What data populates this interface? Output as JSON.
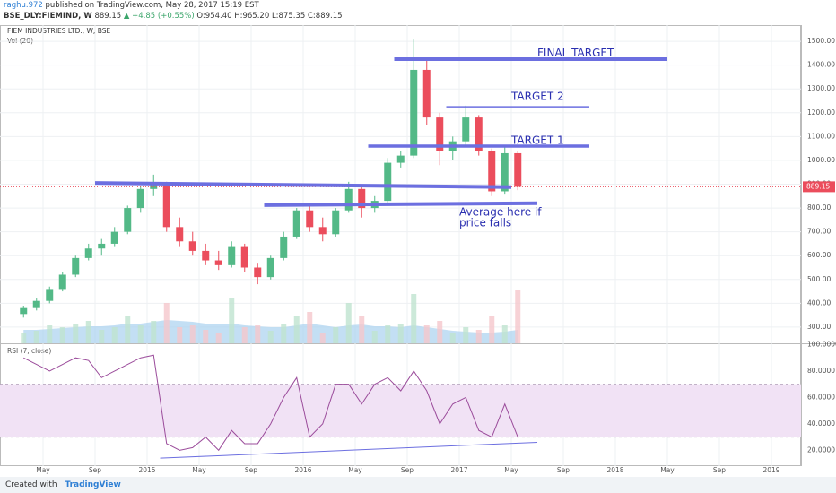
{
  "header": {
    "author": "raghu.972",
    "published": "published on TradingView.com, May 28, 2017 15:19 EST",
    "symbol": "BSE_DLY:FIEMIND, W",
    "last": "889.15",
    "change": "▲ +4.85 (+0.55%)",
    "open": "O:954.40",
    "high": "H:965.20",
    "low": "L:875.35",
    "close": "C:889.15"
  },
  "footer": {
    "created": "Created with",
    "brand": "TradingView"
  },
  "chart_data": {
    "type": "candlestick",
    "title": "FIEM INDUSTRIES LTD., W, BSE",
    "x": [
      "2014-03",
      "2014-04",
      "2014-05",
      "2014-06",
      "2014-07",
      "2014-08",
      "2014-09",
      "2014-10",
      "2014-11",
      "2014-12",
      "2015-01",
      "2015-02",
      "2015-03",
      "2015-04",
      "2015-05",
      "2015-06",
      "2015-07",
      "2015-08",
      "2015-09",
      "2015-10",
      "2015-11",
      "2015-12",
      "2016-01",
      "2016-02",
      "2016-03",
      "2016-04",
      "2016-05",
      "2016-06",
      "2016-07",
      "2016-08",
      "2016-09",
      "2016-10",
      "2016-11",
      "2016-12",
      "2017-01",
      "2017-02",
      "2017-03",
      "2017-04",
      "2017-05"
    ],
    "open": [
      355,
      380,
      410,
      460,
      520,
      590,
      630,
      650,
      700,
      800,
      880,
      900,
      720,
      660,
      620,
      580,
      560,
      640,
      550,
      510,
      590,
      680,
      790,
      720,
      690,
      790,
      880,
      800,
      830,
      990,
      1020,
      1380,
      1180,
      1040,
      1080,
      1180,
      1040,
      870,
      1030
    ],
    "high": [
      390,
      420,
      470,
      530,
      600,
      650,
      670,
      720,
      810,
      890,
      940,
      910,
      760,
      700,
      650,
      620,
      660,
      650,
      570,
      600,
      700,
      800,
      810,
      760,
      800,
      910,
      890,
      850,
      1010,
      1040,
      1510,
      1420,
      1200,
      1100,
      1230,
      1190,
      1050,
      1060,
      1040
    ],
    "low": [
      340,
      370,
      400,
      450,
      510,
      580,
      600,
      640,
      690,
      780,
      850,
      700,
      640,
      600,
      560,
      540,
      550,
      530,
      480,
      500,
      580,
      670,
      700,
      660,
      680,
      780,
      760,
      780,
      820,
      970,
      1010,
      1150,
      980,
      1000,
      1060,
      1020,
      850,
      860,
      875
    ],
    "close": [
      380,
      410,
      460,
      520,
      590,
      630,
      650,
      700,
      800,
      880,
      900,
      720,
      660,
      620,
      580,
      560,
      640,
      550,
      510,
      590,
      680,
      790,
      720,
      690,
      790,
      880,
      800,
      830,
      990,
      1020,
      1380,
      1180,
      1040,
      1080,
      1180,
      1040,
      870,
      1030,
      889.15
    ],
    "last_price_label": "889.15",
    "up_color": "#53b987",
    "down_color": "#eb4d5c",
    "xlim": [
      "2014-01",
      "2019-03"
    ],
    "xticks": [
      {
        "value": "2014-05",
        "label": "May"
      },
      {
        "value": "2014-09",
        "label": "Sep"
      },
      {
        "value": "2015-01",
        "label": "2015"
      },
      {
        "value": "2015-05",
        "label": "May"
      },
      {
        "value": "2015-09",
        "label": "Sep"
      },
      {
        "value": "2016-01",
        "label": "2016"
      },
      {
        "value": "2016-05",
        "label": "May"
      },
      {
        "value": "2016-09",
        "label": "Sep"
      },
      {
        "value": "2017-01",
        "label": "2017"
      },
      {
        "value": "2017-05",
        "label": "May"
      },
      {
        "value": "2017-09",
        "label": "Sep"
      },
      {
        "value": "2018-01",
        "label": "2018"
      },
      {
        "value": "2018-05",
        "label": "May"
      },
      {
        "value": "2018-09",
        "label": "Sep"
      },
      {
        "value": "2019-01",
        "label": "2019"
      }
    ],
    "ylim": [
      232,
      1568
    ],
    "yticks": [
      {
        "value": 300,
        "label": "300.00"
      },
      {
        "value": 400,
        "label": "400.00"
      },
      {
        "value": 500,
        "label": "500.00"
      },
      {
        "value": 600,
        "label": "600.00"
      },
      {
        "value": 700,
        "label": "700.00"
      },
      {
        "value": 800,
        "label": "800.00"
      },
      {
        "value": 900,
        "label": "900.00"
      },
      {
        "value": 1000,
        "label": "1000.00"
      },
      {
        "value": 1100,
        "label": "1100.00"
      },
      {
        "value": 1200,
        "label": "1200.00"
      },
      {
        "value": 1300,
        "label": "1300.00"
      },
      {
        "value": 1400,
        "label": "1400.00"
      },
      {
        "value": 1500,
        "label": "1500.00"
      }
    ],
    "grid": true,
    "volume": {
      "label": "Vol (20)",
      "values": [
        12,
        14,
        20,
        18,
        22,
        25,
        15,
        18,
        30,
        20,
        25,
        45,
        18,
        20,
        15,
        12,
        50,
        18,
        20,
        14,
        22,
        30,
        35,
        12,
        18,
        45,
        30,
        14,
        20,
        22,
        55,
        20,
        25,
        12,
        18,
        15,
        30,
        20,
        60
      ],
      "ma": [
        15,
        15,
        16,
        17,
        18,
        19,
        19,
        20,
        22,
        22,
        24,
        26,
        25,
        24,
        22,
        21,
        22,
        20,
        19,
        18,
        18,
        20,
        22,
        20,
        18,
        20,
        21,
        19,
        19,
        18,
        20,
        18,
        16,
        14,
        13,
        12,
        12,
        13,
        15
      ],
      "vlim": [
        0,
        100
      ],
      "up_color": "#bfe3d0",
      "down_color": "#f5c7cc",
      "ma_color": "#a9d2f0"
    },
    "rsi": {
      "label": "RSI (7, close)",
      "values": [
        90,
        85,
        80,
        85,
        90,
        88,
        75,
        80,
        85,
        90,
        92,
        25,
        20,
        22,
        30,
        20,
        35,
        25,
        25,
        40,
        60,
        75,
        30,
        40,
        70,
        70,
        55,
        70,
        75,
        65,
        80,
        65,
        40,
        55,
        60,
        35,
        30,
        55,
        30
      ],
      "color": "#9b4c9b",
      "band": [
        30,
        70
      ],
      "ylim": [
        8,
        101
      ],
      "yticks": [
        {
          "value": 20,
          "label": "20.0000"
        },
        {
          "value": 40,
          "label": "40.0000"
        },
        {
          "value": 60,
          "label": "60.0000"
        },
        {
          "value": 80,
          "label": "80.0000"
        },
        {
          "value": 100,
          "label": "100.0000"
        }
      ],
      "trendline": {
        "x": [
          "2015-02",
          "2017-07"
        ],
        "y": [
          14,
          26
        ]
      }
    },
    "drawings": [
      {
        "x": [
          "2016-08",
          "2018-05"
        ],
        "y": [
          1425,
          1425
        ],
        "width": 4
      },
      {
        "x": [
          "2016-12",
          "2017-11"
        ],
        "y": [
          1225,
          1225
        ],
        "width": 1.5
      },
      {
        "x": [
          "2016-06",
          "2017-11"
        ],
        "y": [
          1060,
          1060
        ],
        "width": 3.5
      },
      {
        "x": [
          "2014-09",
          "2017-05"
        ],
        "y": [
          905,
          888
        ],
        "width": 4
      },
      {
        "x": [
          "2015-10",
          "2017-07"
        ],
        "y": [
          812,
          820
        ],
        "width": 4
      }
    ],
    "annotations": [
      {
        "text": "FINAL TARGET",
        "x": "2017-07",
        "y": 1450
      },
      {
        "text": "TARGET 2",
        "x": "2017-05",
        "y": 1267
      },
      {
        "text": "TARGET 1",
        "x": "2017-05",
        "y": 1083
      },
      {
        "text": "Average here if",
        "x": "2017-01",
        "y": 781
      },
      {
        "text": "price falls",
        "x": "2017-01",
        "y": 737
      }
    ]
  }
}
